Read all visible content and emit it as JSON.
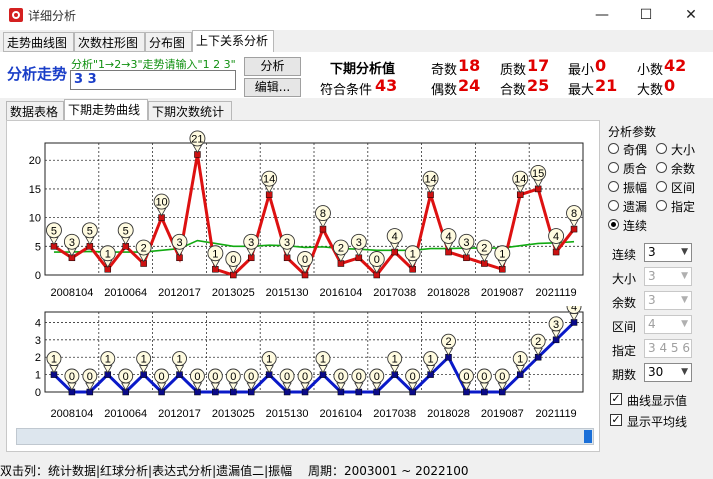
{
  "window": {
    "title": "详细分析",
    "minimize": "—",
    "maximize": "☐",
    "close": "✕"
  },
  "top_tabs": [
    "走势曲线图",
    "次数柱形图",
    "分布图",
    "上下关系分析"
  ],
  "analysis": {
    "label": "分析走势",
    "hint": "分析\"1→2→3\"走势请输入\"1 2 3\"",
    "input_value": "3 3",
    "analyze_button": "分析",
    "edit_button": "编辑..."
  },
  "next_period": {
    "title": "下期分析值",
    "condition_label": "符合条件",
    "condition_value": "43"
  },
  "stats": [
    {
      "label": "奇数",
      "value": "18"
    },
    {
      "label": "偶数",
      "value": "24"
    },
    {
      "label": "质数",
      "value": "17"
    },
    {
      "label": "合数",
      "value": "25"
    },
    {
      "label": "最小",
      "value": "0"
    },
    {
      "label": "最大",
      "value": "21"
    },
    {
      "label": "小数",
      "value": "42"
    },
    {
      "label": "大数",
      "value": "0"
    }
  ],
  "sub_tabs": [
    "数据表格",
    "下期走势曲线",
    "下期次数统计"
  ],
  "params": {
    "title": "分析参数",
    "options": [
      "奇偶",
      "大小",
      "质合",
      "余数",
      "振幅",
      "区间",
      "遗漏",
      "指定",
      "连续"
    ],
    "selected": "连续",
    "fields": [
      {
        "label": "连续",
        "value": "3",
        "enabled": true
      },
      {
        "label": "大小",
        "value": "3",
        "enabled": false
      },
      {
        "label": "余数",
        "value": "3",
        "enabled": false
      },
      {
        "label": "区间",
        "value": "4",
        "enabled": false
      },
      {
        "label": "指定",
        "value": "3 4 5 6",
        "enabled": false
      },
      {
        "label": "期数",
        "value": "30",
        "enabled": true
      }
    ],
    "checkboxes": [
      {
        "label": "曲线显示值",
        "checked": true
      },
      {
        "label": "显示平均线",
        "checked": true
      }
    ]
  },
  "status": {
    "left": "双击列：统计数据|红球分析|表达式分析|遗漏值二|振幅",
    "right": "周期：2003001 ~ 2022100"
  },
  "colors": {
    "main_line": "#dd1111",
    "avg_line": "#11aa11",
    "sub_line": "#0a19c8",
    "value_text": "#e00000"
  },
  "chart_data": [
    {
      "type": "line",
      "x_tick_labels": [
        "2008104",
        "2010064",
        "2012017",
        "2013025",
        "2015130",
        "2016104",
        "2017038",
        "2018028",
        "2019087",
        "2021119"
      ],
      "y_ticks": [
        "0",
        "5",
        "10",
        "15",
        "20"
      ],
      "ylim": [
        0,
        23
      ],
      "series": [
        {
          "values": [
            5,
            3,
            5,
            1,
            5,
            2,
            10,
            3,
            21,
            1,
            0,
            3,
            14,
            3,
            0,
            8,
            2,
            3,
            0,
            4,
            1,
            14,
            4,
            3,
            2,
            1,
            14,
            15,
            4,
            8
          ]
        }
      ],
      "moving_average": [
        4.0,
        4.0,
        4.1,
        4.0,
        4.0,
        4.0,
        4.3,
        4.6,
        6.0,
        5.5,
        5.0,
        5.0,
        5.2,
        5.1,
        4.8,
        4.9,
        4.6,
        4.5,
        4.3,
        4.3,
        4.3,
        4.6,
        4.6,
        4.7,
        4.7,
        4.7,
        5.1,
        5.5,
        5.6,
        5.8
      ]
    },
    {
      "type": "line",
      "x_tick_labels": [
        "2008104",
        "2010064",
        "2012017",
        "2013025",
        "2015130",
        "2016104",
        "2017038",
        "2018028",
        "2019087",
        "2021119"
      ],
      "y_ticks": [
        "0",
        "1",
        "2",
        "3",
        "4"
      ],
      "ylim": [
        0,
        4.6
      ],
      "series": [
        {
          "values": [
            1,
            0,
            0,
            1,
            0,
            1,
            0,
            1,
            0,
            0,
            0,
            0,
            1,
            0,
            0,
            1,
            0,
            0,
            0,
            1,
            0,
            1,
            2,
            0,
            0,
            0,
            1,
            2,
            3,
            4
          ]
        }
      ]
    }
  ]
}
